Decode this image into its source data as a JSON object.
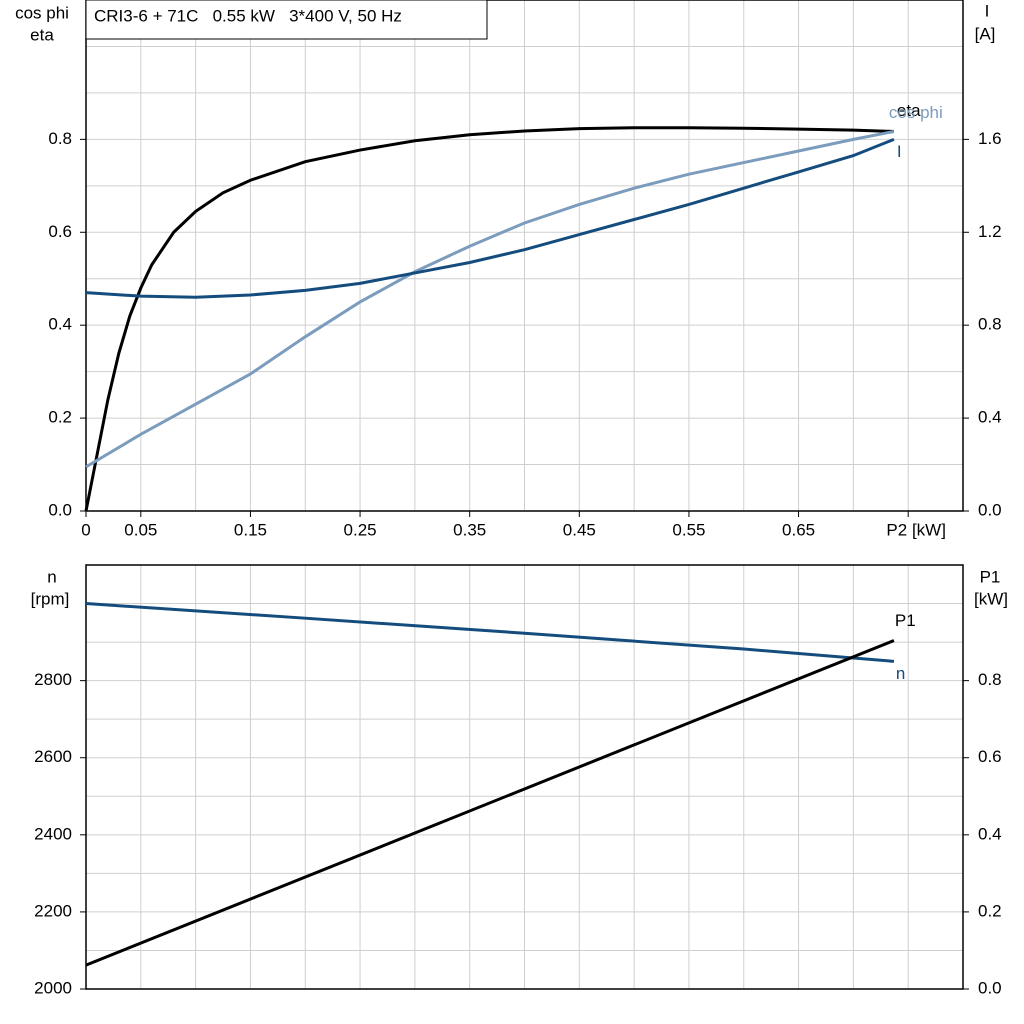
{
  "chart_data": [
    {
      "type": "line",
      "title": "CRI3-6 + 71C   0.55 kW   3*400 V, 50 Hz",
      "ylabel": [
        "cos phi",
        "eta"
      ],
      "y2label": [
        "I",
        "[A]"
      ],
      "xlim": [
        0,
        0.8
      ],
      "ylim": [
        0,
        1.1
      ],
      "y2lim": [
        0,
        2.2
      ],
      "xticks": [
        0,
        0.05,
        0.15,
        0.25,
        0.35,
        0.45,
        0.55,
        0.65,
        {
          "value": 0.75,
          "label": "P2 [kW]"
        }
      ],
      "yticks": [
        {
          "value": 0,
          "label": "0.0"
        },
        0.2,
        0.4,
        0.6,
        0.8
      ],
      "y2ticks": [
        {
          "value": 0,
          "label": "0.0"
        },
        0.4,
        0.8,
        1.2,
        1.6
      ],
      "xgrid": [
        0.05,
        0.1,
        0.15,
        0.2,
        0.25,
        0.3,
        0.35,
        0.4,
        0.45,
        0.5,
        0.55,
        0.6,
        0.65,
        0.7,
        0.75
      ],
      "ygrid": [
        0.1,
        0.2,
        0.3,
        0.4,
        0.5,
        0.6,
        0.7,
        0.8,
        0.9,
        1.0
      ],
      "series": [
        {
          "name": "eta",
          "color": "#000000",
          "x": [
            0,
            0.01,
            0.02,
            0.03,
            0.04,
            0.05,
            0.06,
            0.08,
            0.1,
            0.125,
            0.15,
            0.2,
            0.25,
            0.3,
            0.35,
            0.4,
            0.45,
            0.5,
            0.55,
            0.6,
            0.65,
            0.7,
            0.737
          ],
          "values": [
            0,
            0.12,
            0.24,
            0.34,
            0.42,
            0.48,
            0.53,
            0.6,
            0.645,
            0.685,
            0.712,
            0.752,
            0.777,
            0.797,
            0.81,
            0.818,
            0.823,
            0.825,
            0.825,
            0.824,
            0.822,
            0.82,
            0.817
          ]
        },
        {
          "name": "cos phi",
          "color": "#7b9cbd",
          "x": [
            0,
            0.05,
            0.1,
            0.15,
            0.2,
            0.25,
            0.3,
            0.35,
            0.4,
            0.45,
            0.5,
            0.55,
            0.6,
            0.65,
            0.7,
            0.737
          ],
          "values": [
            0.095,
            0.165,
            0.23,
            0.295,
            0.375,
            0.45,
            0.515,
            0.57,
            0.62,
            0.66,
            0.695,
            0.725,
            0.75,
            0.775,
            0.8,
            0.817
          ]
        },
        {
          "name": "I",
          "color": "#154c7e",
          "axis": "y2",
          "x": [
            0,
            0.05,
            0.1,
            0.15,
            0.2,
            0.25,
            0.3,
            0.35,
            0.4,
            0.45,
            0.5,
            0.55,
            0.6,
            0.65,
            0.7,
            0.737
          ],
          "values": [
            0.94,
            0.925,
            0.92,
            0.93,
            0.95,
            0.98,
            1.025,
            1.07,
            1.125,
            1.19,
            1.255,
            1.32,
            1.39,
            1.46,
            1.53,
            1.6
          ]
        }
      ]
    },
    {
      "type": "line",
      "ylabel": [
        "n",
        "[rpm]"
      ],
      "y2label": [
        "P1",
        "[kW]"
      ],
      "xlim": [
        0,
        0.8
      ],
      "ylim": [
        2000,
        3100
      ],
      "y2lim": [
        0,
        1.1
      ],
      "yticks": [
        2000,
        2200,
        2400,
        2600,
        2800
      ],
      "y2ticks": [
        {
          "value": 0,
          "label": "0.0"
        },
        0.2,
        0.4,
        0.6,
        0.8
      ],
      "xgrid": [
        0.05,
        0.1,
        0.15,
        0.2,
        0.25,
        0.3,
        0.35,
        0.4,
        0.45,
        0.5,
        0.55,
        0.6,
        0.65,
        0.7,
        0.75
      ],
      "ygrid": [
        2100,
        2200,
        2300,
        2400,
        2500,
        2600,
        2700,
        2800,
        2900,
        3000
      ],
      "series": [
        {
          "name": "n",
          "color": "#154c7e",
          "x": [
            0,
            0.2,
            0.4,
            0.6,
            0.737
          ],
          "values": [
            3000,
            2962,
            2923,
            2882,
            2850
          ]
        },
        {
          "name": "P1",
          "color": "#000000",
          "axis": "y2",
          "x": [
            0,
            0.737
          ],
          "values": [
            0.062,
            0.904
          ]
        }
      ]
    }
  ]
}
